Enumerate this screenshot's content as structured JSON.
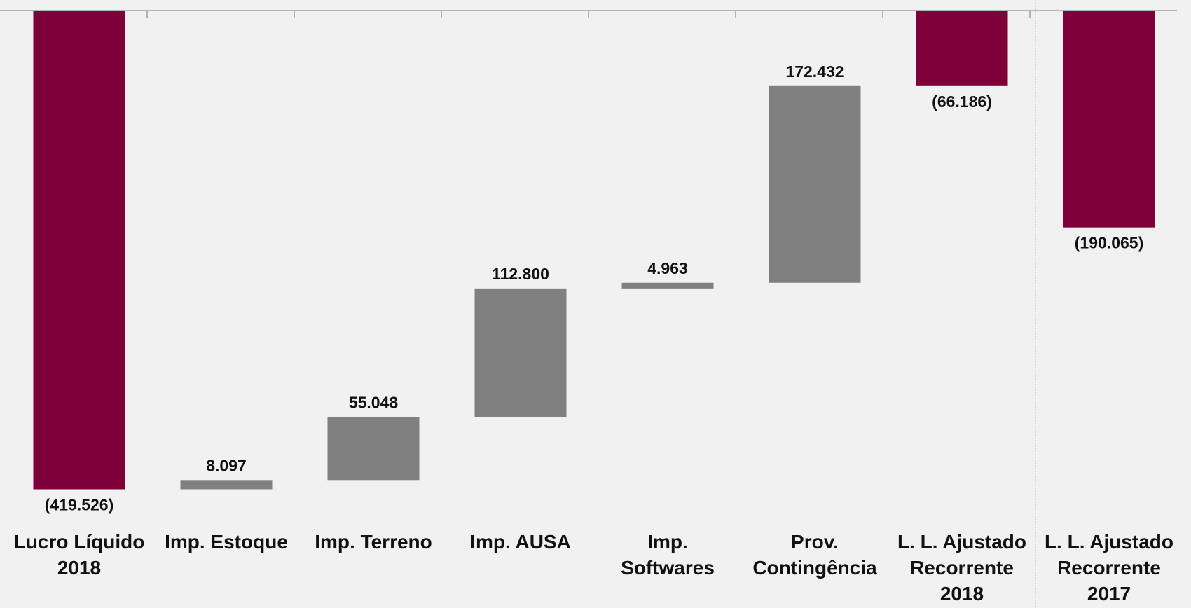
{
  "chart_data": {
    "type": "bar",
    "subtype": "waterfall",
    "title": "",
    "xlabel": "",
    "ylabel": "",
    "ylim": [
      -430,
      0
    ],
    "grid": false,
    "legend": "none",
    "categories": [
      [
        "Lucro Líquido",
        "2018"
      ],
      [
        "Imp. Estoque"
      ],
      [
        "Imp. Terreno"
      ],
      [
        "Imp. AUSA"
      ],
      [
        "Imp.",
        "Softwares"
      ],
      [
        "Prov.",
        "Contingência"
      ],
      [
        "L. L. Ajustado",
        "Recorrente",
        "2018"
      ],
      [
        "L. L. Ajustado",
        "Recorrente",
        "2017"
      ]
    ],
    "bars": [
      {
        "kind": "total",
        "start": 0,
        "end": -419.526,
        "label": "(419.526)"
      },
      {
        "kind": "delta",
        "start": -419.526,
        "end": -411.429,
        "label": "8.097"
      },
      {
        "kind": "delta",
        "start": -411.429,
        "end": -356.381,
        "label": "55.048"
      },
      {
        "kind": "delta",
        "start": -356.381,
        "end": -243.581,
        "label": "112.800"
      },
      {
        "kind": "delta",
        "start": -243.581,
        "end": -238.618,
        "label": "4.963"
      },
      {
        "kind": "delta",
        "start": -238.618,
        "end": -66.186,
        "label": "172.432"
      },
      {
        "kind": "total",
        "start": 0,
        "end": -66.186,
        "label": "(66.186)"
      },
      {
        "kind": "total",
        "start": 0,
        "end": -190.065,
        "label": "(190.065)"
      }
    ],
    "colors": {
      "total": "#7d0039",
      "delta": "#808080",
      "axis": "#a0a0a0",
      "background": "#f0f1f0"
    }
  }
}
